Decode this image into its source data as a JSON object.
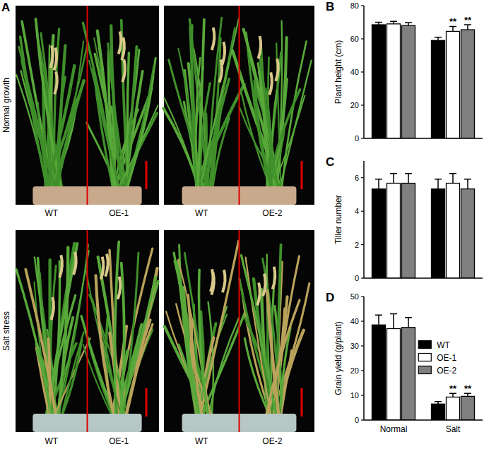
{
  "panel_a": {
    "label": "A",
    "rows": [
      {
        "label": "Normal growth",
        "images": [
          {
            "left": "WT",
            "right": "OE-1"
          },
          {
            "left": "WT",
            "right": "OE-2"
          }
        ]
      },
      {
        "label": "Salt stress",
        "images": [
          {
            "left": "WT",
            "right": "OE-1"
          },
          {
            "left": "WT",
            "right": "OE-2"
          }
        ]
      }
    ]
  },
  "chart_data": [
    {
      "type": "bar",
      "title": "B",
      "y_label": "Plant height (cm)",
      "categories": [
        null,
        null
      ],
      "ylim": [
        0,
        80
      ],
      "yticks": [
        0,
        20,
        40,
        60,
        80
      ],
      "tick_labels": "y",
      "legend": false,
      "series": [
        {
          "color": "#000000",
          "values": [
            68.5,
            59
          ],
          "errors": [
            1.5,
            2
          ],
          "annotations": [
            null,
            null
          ]
        },
        {
          "color": "#ffffff",
          "values": [
            69,
            64.5
          ],
          "errors": [
            1.5,
            3
          ],
          "annotations": [
            null,
            "**"
          ]
        },
        {
          "color": "#808080",
          "values": [
            68,
            65.5
          ],
          "errors": [
            1.8,
            3
          ],
          "annotations": [
            null,
            "**"
          ]
        }
      ]
    },
    {
      "type": "bar",
      "title": "C",
      "y_label": "Tiller number",
      "categories": [
        null,
        null
      ],
      "ylim": [
        0,
        7
      ],
      "yticks": [
        0,
        2,
        4,
        6
      ],
      "tick_labels": "y",
      "legend": false,
      "series": [
        {
          "color": "#000000",
          "values": [
            5.33,
            5.33
          ],
          "errors": [
            0.58,
            0.58
          ],
          "annotations": [
            null,
            null
          ]
        },
        {
          "color": "#ffffff",
          "values": [
            5.67,
            5.67
          ],
          "errors": [
            0.58,
            0.58
          ],
          "annotations": [
            null,
            null
          ]
        },
        {
          "color": "#808080",
          "values": [
            5.67,
            5.33
          ],
          "errors": [
            0.58,
            0.58
          ],
          "annotations": [
            null,
            null
          ]
        }
      ]
    },
    {
      "type": "bar",
      "title": "D",
      "y_label": "Grain yield (g/plant)",
      "categories": [
        "Normal",
        "Salt"
      ],
      "ylim": [
        0,
        50
      ],
      "yticks": [
        0,
        10,
        20,
        30,
        40,
        50
      ],
      "legend": "right",
      "series": [
        {
          "name": "WT",
          "color": "#000000",
          "values": [
            38.5,
            6.5
          ],
          "errors": [
            4,
            1
          ],
          "annotations": [
            null,
            null
          ]
        },
        {
          "name": "OE-1",
          "color": "#ffffff",
          "values": [
            37,
            9.3
          ],
          "errors": [
            6,
            1.5
          ],
          "annotations": [
            null,
            "**"
          ]
        },
        {
          "name": "OE-2",
          "color": "#808080",
          "values": [
            37.5,
            9.6
          ],
          "errors": [
            4,
            1.2
          ],
          "annotations": [
            null,
            "**"
          ]
        }
      ]
    }
  ]
}
